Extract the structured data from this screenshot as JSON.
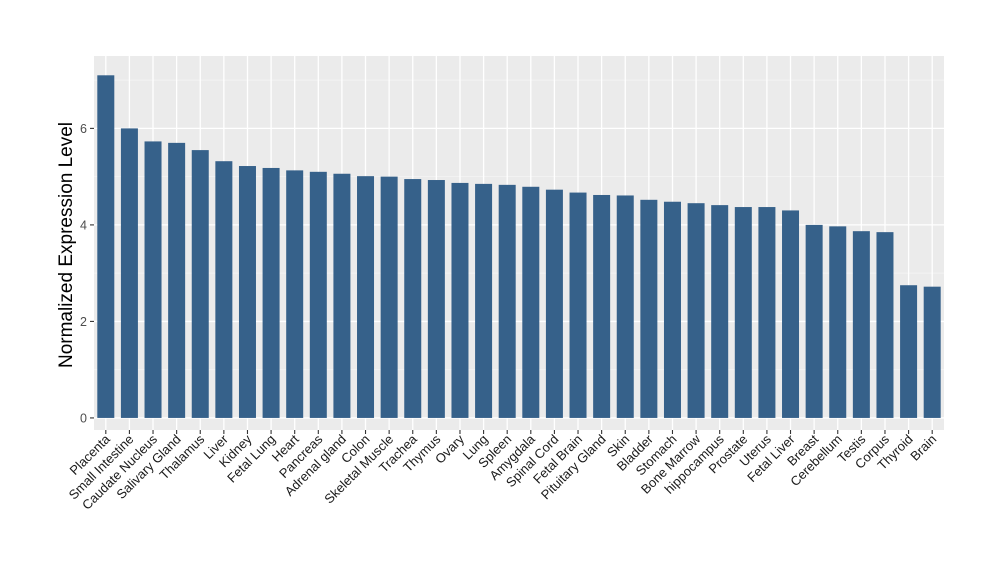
{
  "chart_data": {
    "type": "bar",
    "title": "",
    "xlabel": "",
    "ylabel": "Normalized Expression Level",
    "ylim": [
      -0.25,
      7.5
    ],
    "yticks": [
      0,
      2,
      4,
      6
    ],
    "grid": true,
    "legend": "none",
    "bar_color": "#36618A",
    "panel_color": "#EBEBEB",
    "categories": [
      "Placenta",
      "Small Intestine",
      "Caudate Nucleus",
      "Salivary Gland",
      "Thalamus",
      "Liver",
      "Kidney",
      "Fetal Lung",
      "Heart",
      "Pancreas",
      "Adrenal gland",
      "Colon",
      "Skeletal Muscle",
      "Trachea",
      "Thymus",
      "Ovary",
      "Lung",
      "Spleen",
      "Amygdala",
      "Spinal Cord",
      "Fetal Brain",
      "Pituitary Gland",
      "Skin",
      "Bladder",
      "Stomach",
      "Bone Marrow",
      "hippocampus",
      "Prostate",
      "Uterus",
      "Fetal Liver",
      "Breast",
      "Cerebellum",
      "Testis",
      "Corpus",
      "Thyroid",
      "Brain"
    ],
    "values": [
      7.1,
      6.0,
      5.73,
      5.7,
      5.55,
      5.32,
      5.22,
      5.18,
      5.13,
      5.1,
      5.06,
      5.01,
      5.0,
      4.95,
      4.93,
      4.87,
      4.85,
      4.83,
      4.79,
      4.73,
      4.67,
      4.62,
      4.61,
      4.52,
      4.48,
      4.45,
      4.41,
      4.37,
      4.37,
      4.3,
      4.0,
      3.97,
      3.87,
      3.85,
      2.75,
      2.72
    ]
  }
}
